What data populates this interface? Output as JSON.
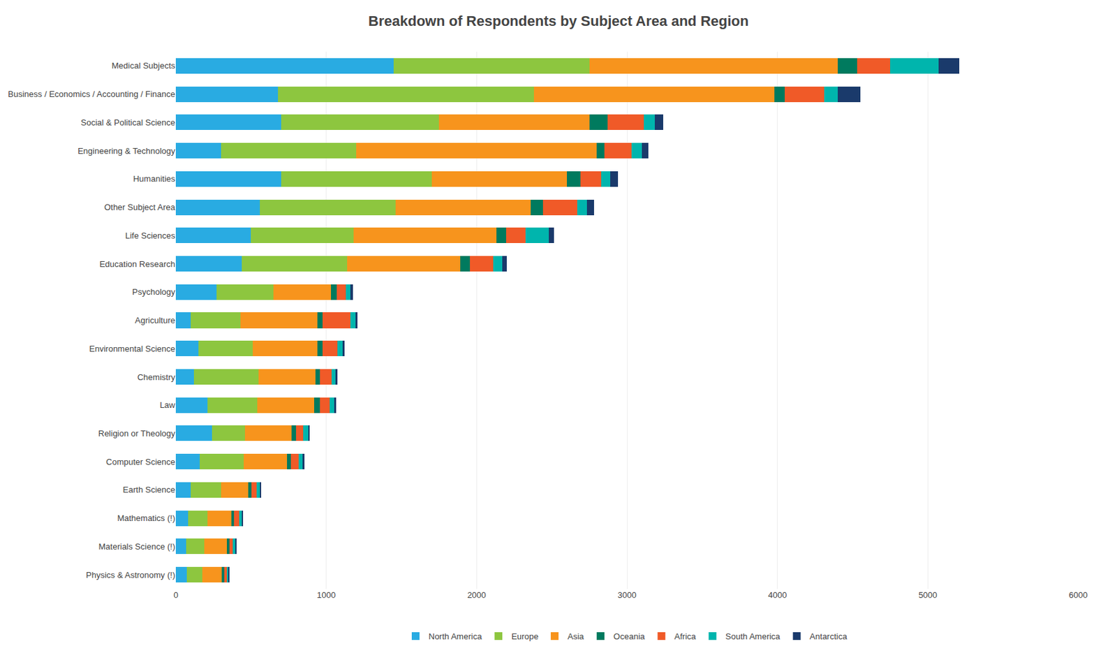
{
  "chart_data": {
    "type": "bar",
    "orientation": "horizontal",
    "stacked": true,
    "title": "Breakdown of Respondents by Subject Area and Region",
    "categories": [
      "Medical Subjects",
      "Business / Economics / Accounting / Finance",
      "Social & Political Science",
      "Engineering & Technology",
      "Humanities",
      "Other Subject Area",
      "Life Sciences",
      "Education Research",
      "Psychology",
      "Agriculture",
      "Environmental Science",
      "Chemistry",
      "Law",
      "Religion or Theology",
      "Computer Science",
      "Earth Science",
      "Mathematics (!)",
      "Materials Science (!)",
      "Physics & Astronomy (!)"
    ],
    "series": [
      {
        "name": "North America",
        "color": "#29ABE2",
        "values": [
          1450,
          680,
          700,
          300,
          700,
          560,
          500,
          440,
          270,
          100,
          150,
          120,
          210,
          240,
          160,
          100,
          80,
          70,
          75
        ]
      },
      {
        "name": "Europe",
        "color": "#8DC63F",
        "values": [
          1300,
          1700,
          1050,
          900,
          1000,
          900,
          680,
          700,
          380,
          330,
          360,
          430,
          330,
          220,
          290,
          200,
          130,
          120,
          100
        ]
      },
      {
        "name": "Asia",
        "color": "#F7941D",
        "values": [
          1650,
          1600,
          1000,
          1600,
          900,
          900,
          950,
          750,
          380,
          510,
          430,
          380,
          380,
          310,
          290,
          180,
          160,
          150,
          130
        ]
      },
      {
        "name": "Oceania",
        "color": "#007A5E",
        "values": [
          130,
          70,
          120,
          50,
          90,
          80,
          65,
          65,
          40,
          35,
          35,
          30,
          40,
          28,
          25,
          22,
          18,
          17,
          16
        ]
      },
      {
        "name": "Africa",
        "color": "#F05A28",
        "values": [
          220,
          260,
          240,
          180,
          140,
          230,
          130,
          155,
          60,
          185,
          100,
          75,
          65,
          48,
          52,
          35,
          35,
          23,
          18
        ]
      },
      {
        "name": "South America",
        "color": "#00B5AD",
        "values": [
          320,
          90,
          75,
          70,
          60,
          65,
          155,
          60,
          30,
          35,
          35,
          28,
          30,
          35,
          25,
          22,
          18,
          17,
          12
        ]
      },
      {
        "name": "Antarctica",
        "color": "#1A3A6B",
        "values": [
          140,
          150,
          55,
          40,
          50,
          45,
          35,
          30,
          18,
          12,
          12,
          12,
          12,
          10,
          12,
          10,
          6,
          6,
          6
        ]
      }
    ],
    "xlim": [
      0,
      6000
    ],
    "xticks": [
      0,
      1000,
      2000,
      3000,
      4000,
      5000,
      6000
    ],
    "grid": true,
    "legend": "bottom"
  }
}
